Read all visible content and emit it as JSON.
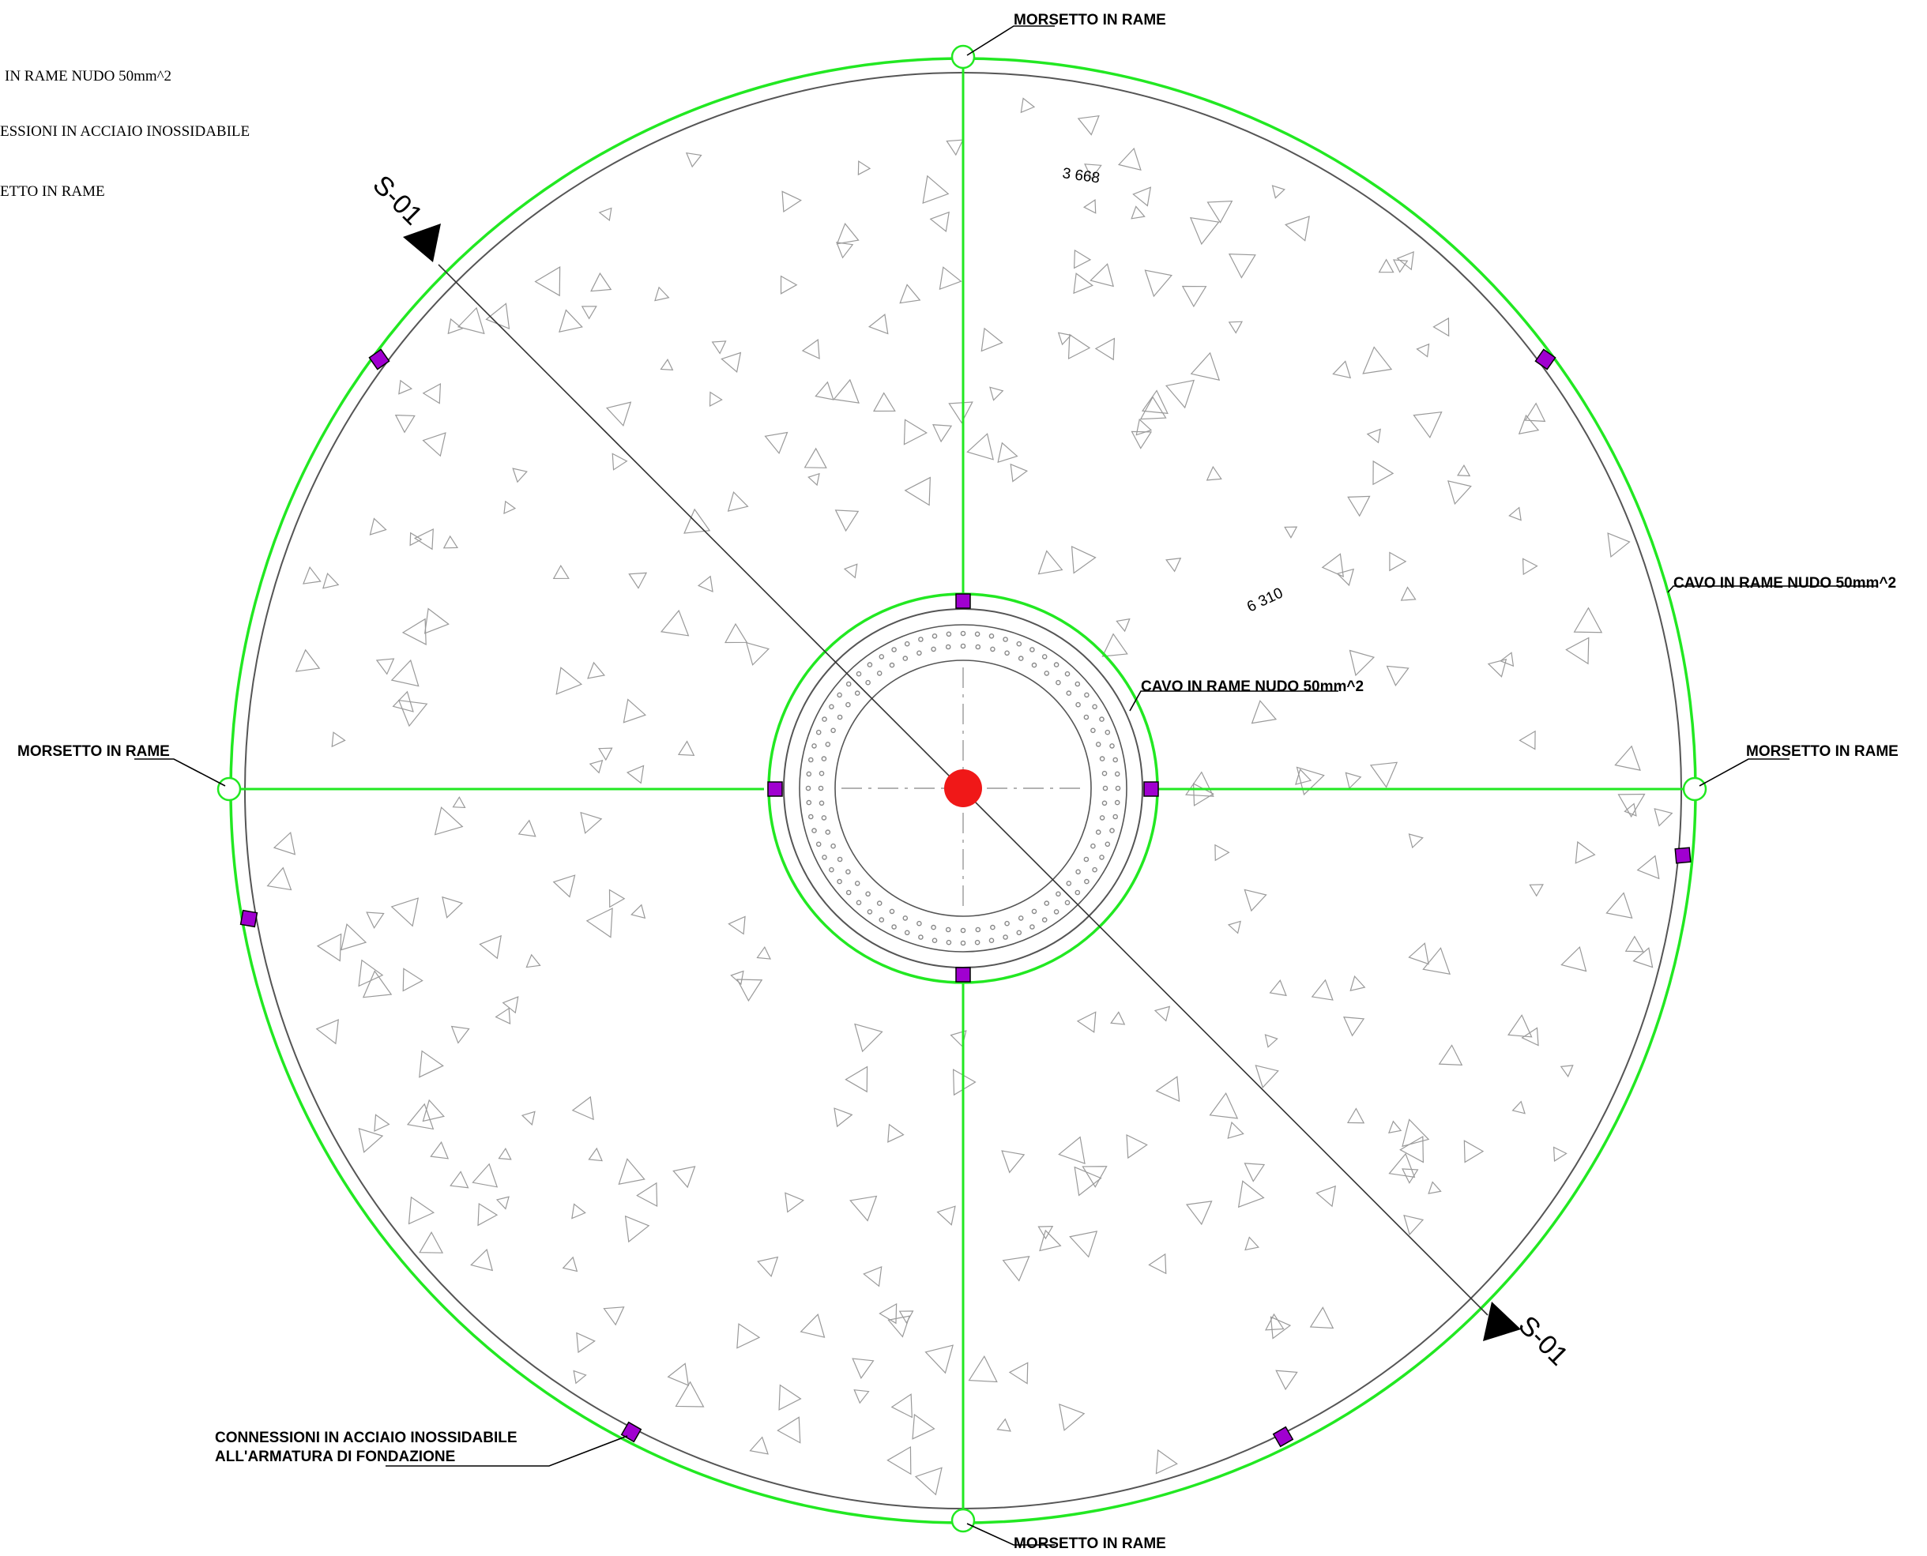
{
  "legend": {
    "item1": "IN RAME NUDO 50mm^2",
    "item2": "ESSIONI IN ACCIAIO INOSSIDABILE",
    "item3": "ETTO IN RAME"
  },
  "callouts": {
    "clamp_top": "MORSETTO IN RAME",
    "clamp_left": "MORSETTO IN RAME",
    "clamp_right": "MORSETTO IN RAME",
    "clamp_bottom": "MORSETTO IN RAME",
    "cable_outer": "CAVO IN RAME NUDO 50mm^2",
    "cable_inner": "CAVO IN RAME NUDO 50mm^2",
    "steel_line1": "CONNESSIONI IN ACCIAIO INOSSIDABILE",
    "steel_line2": "ALL'ARMATURA DI FONDAZIONE"
  },
  "dimensions": {
    "radius_a": "3 668",
    "radius_b": "6 310"
  },
  "section": {
    "top": "S-01",
    "bottom": "S-01"
  },
  "colors": {
    "cable_green": "#22e822",
    "connector_magenta": "#a000d0",
    "center_red": "#f01818",
    "outline": "#555555"
  }
}
